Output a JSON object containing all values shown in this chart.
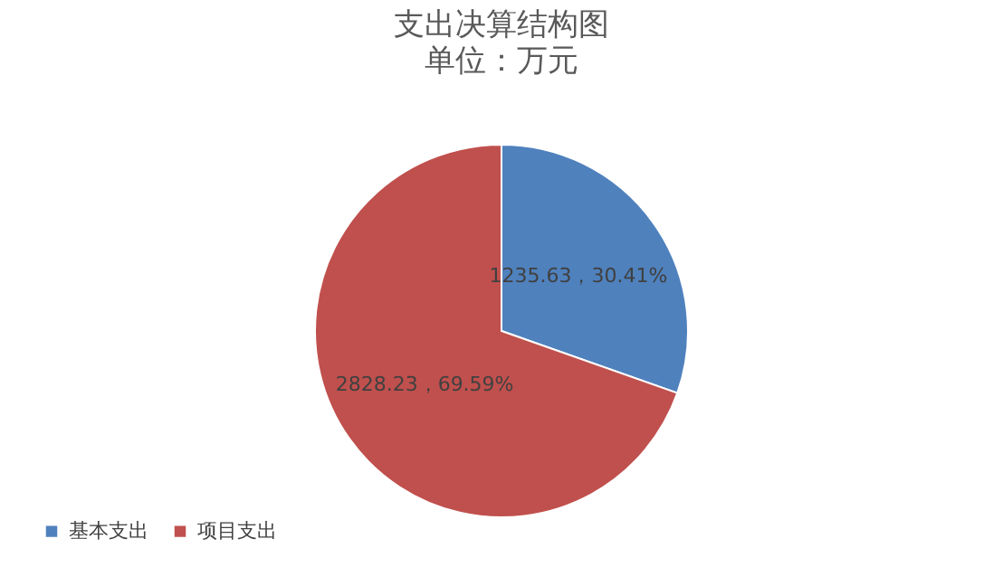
{
  "chart_data": {
    "type": "pie",
    "title": "支出决算结构图",
    "subtitle": "单位：万元",
    "categories": [
      "基本支出",
      "项目支出"
    ],
    "values": [
      1235.63,
      2828.23
    ],
    "colors": [
      "#4f81bd",
      "#c0504d"
    ],
    "value_labels": [
      "1235.63，30.41%",
      "2828.23，69.59%"
    ],
    "legend": "bottom left"
  }
}
